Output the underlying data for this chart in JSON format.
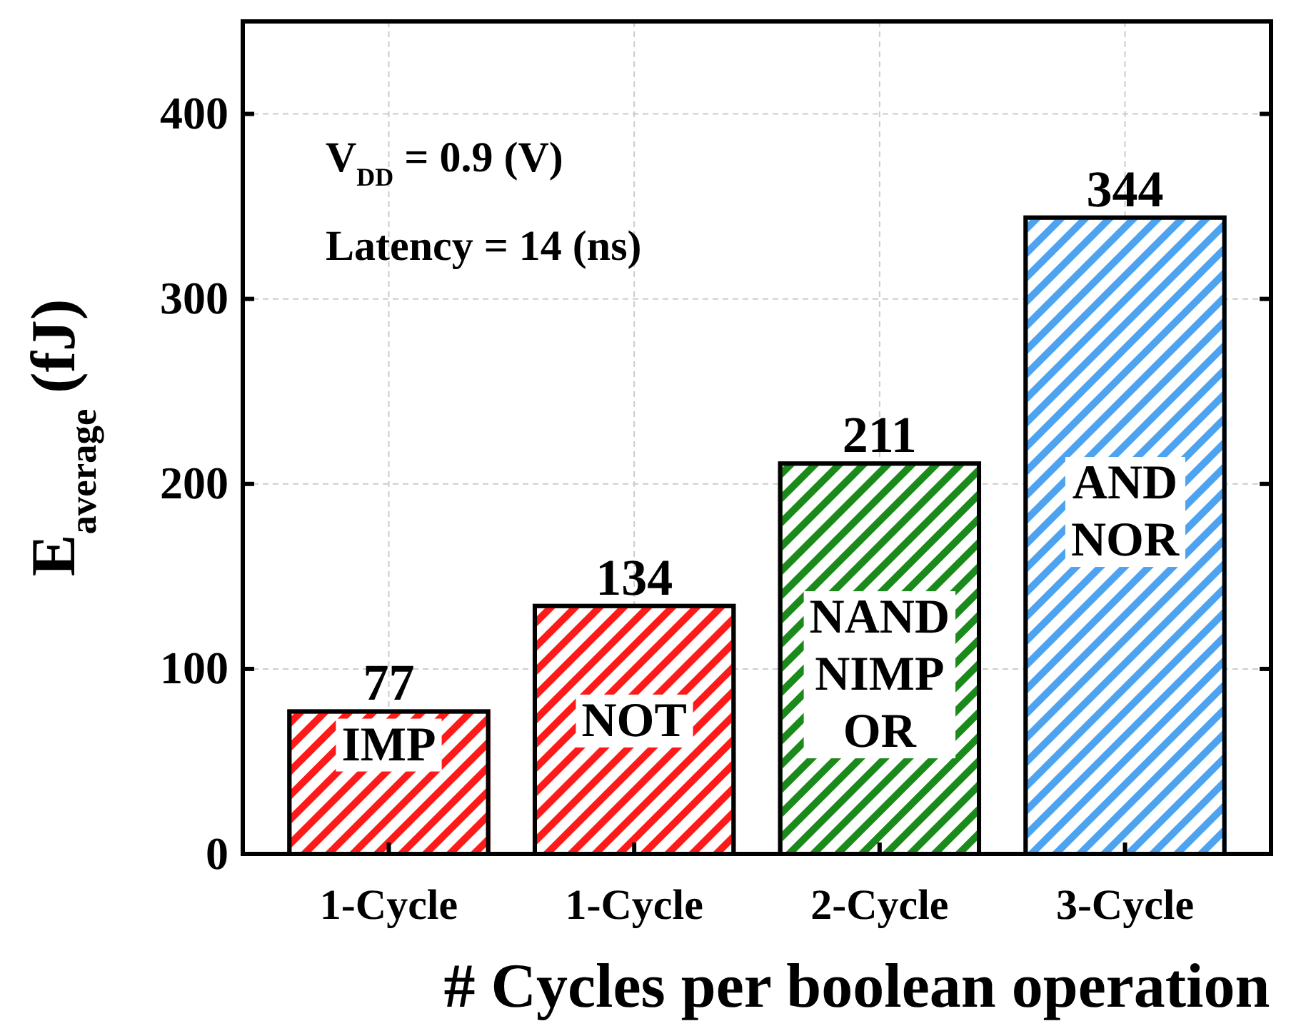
{
  "chart_data": {
    "type": "bar",
    "xlabel": "# Cycles per boolean operation",
    "ylabel": "E$_{average}$ (fJ)",
    "categories": [
      "1-Cycle",
      "1-Cycle",
      "2-Cycle",
      "3-Cycle"
    ],
    "values": [
      77,
      134,
      211,
      344
    ],
    "colors": [
      "#ff1a1a",
      "#ff1a1a",
      "#1a8a1a",
      "#4da3f0"
    ],
    "data_labels": true,
    "ylim": [
      0,
      450
    ],
    "yticks": [
      0,
      100,
      200,
      300,
      400
    ],
    "grid": true,
    "annotations": [
      "V$_{DD}$ = 0.9 (V)",
      "Latency = 14 (ns)",
      "IMP",
      "NOT",
      "NAND\nNIMP\nOR",
      "AND\nNOR"
    ]
  }
}
